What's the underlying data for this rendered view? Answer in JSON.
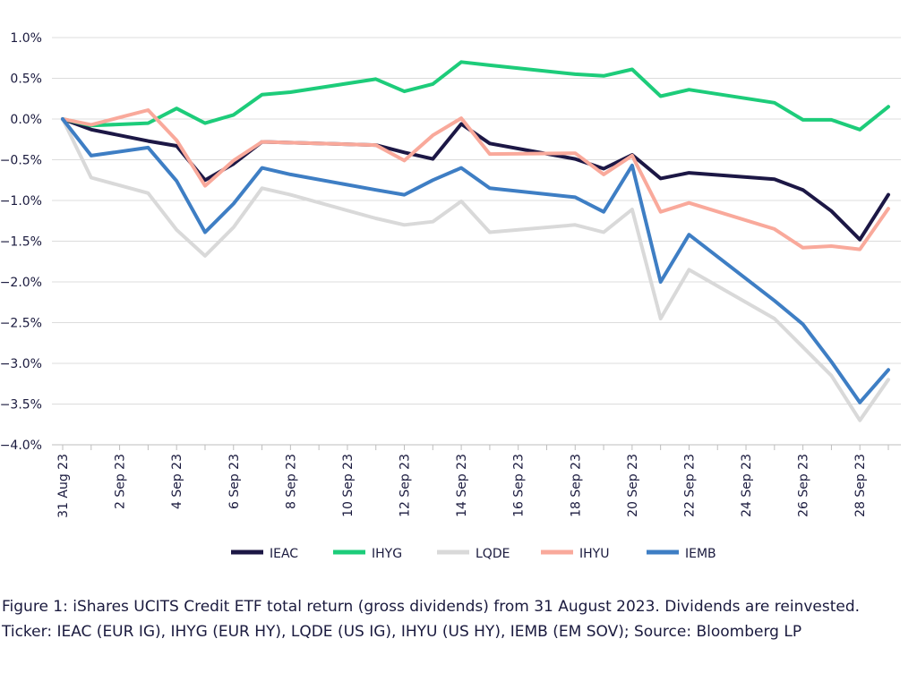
{
  "caption": {
    "line1": "Figure 1: iShares UCITS Credit ETF total return (gross dividends) from 31 August 2023. Dividends are reinvested.",
    "line2": "Ticker: IEAC (EUR IG), IHYG (EUR HY), LQDE (US IG), IHYU (US HY), IEMB (EM SOV); Source: Bloomberg LP"
  },
  "chart_data": {
    "type": "line",
    "title": "",
    "xlabel": "",
    "ylabel": "",
    "x_day_offsets": [
      0,
      1,
      3,
      4,
      5,
      6,
      7,
      8,
      11,
      12,
      13,
      14,
      15,
      18,
      19,
      20,
      21,
      22,
      25,
      26,
      27,
      28,
      29
    ],
    "x_tick_labels": [
      "31 Aug 23",
      "2 Sep 23",
      "4 Sep 23",
      "6 Sep 23",
      "8 Sep 23",
      "10 Sep 23",
      "12 Sep 23",
      "14 Sep 23",
      "16 Sep 23",
      "18 Sep 23",
      "20 Sep 23",
      "22 Sep 23",
      "24 Sep 23",
      "26 Sep 23",
      "28 Sep 23"
    ],
    "x_tick_day_offsets": [
      0,
      2,
      4,
      6,
      8,
      10,
      12,
      14,
      16,
      18,
      20,
      22,
      24,
      26,
      28
    ],
    "y_ticks": [
      1.0,
      0.5,
      0.0,
      -0.5,
      -1.0,
      -1.5,
      -2.0,
      -2.5,
      -3.0,
      -3.5,
      -4.0
    ],
    "y_tick_labels": [
      "1.0%",
      "0.5%",
      "0.0%",
      "−0.5%",
      "−1.0%",
      "−1.5%",
      "−2.0%",
      "−2.5%",
      "−3.0%",
      "−3.5%",
      "−4.0%"
    ],
    "ylim": [
      -4.0,
      1.0
    ],
    "xlim": [
      0,
      29
    ],
    "legend_position": "bottom",
    "series": [
      {
        "name": "IEAC",
        "color": "#1c1745",
        "values": [
          0.0,
          -0.13,
          -0.27,
          -0.33,
          -0.75,
          -0.55,
          -0.28,
          -0.29,
          -0.32,
          -0.41,
          -0.49,
          -0.06,
          -0.3,
          -0.49,
          -0.61,
          -0.44,
          -0.73,
          -0.66,
          -0.74,
          -0.87,
          -1.13,
          -1.48,
          -0.93
        ]
      },
      {
        "name": "IHYG",
        "color": "#1dcc7a",
        "values": [
          0.0,
          -0.08,
          -0.05,
          0.13,
          -0.05,
          0.05,
          0.3,
          0.33,
          0.49,
          0.34,
          0.43,
          0.7,
          0.66,
          0.55,
          0.53,
          0.61,
          0.28,
          0.36,
          0.2,
          -0.01,
          -0.01,
          -0.13,
          0.15
        ]
      },
      {
        "name": "LQDE",
        "color": "#d9d9d9",
        "values": [
          0.0,
          -0.72,
          -0.91,
          -1.36,
          -1.68,
          -1.33,
          -0.85,
          -0.93,
          -1.22,
          -1.3,
          -1.26,
          -1.01,
          -1.39,
          -1.3,
          -1.39,
          -1.11,
          -2.45,
          -1.85,
          -2.45,
          -2.8,
          -3.15,
          -3.7,
          -3.2
        ]
      },
      {
        "name": "IHYU",
        "color": "#f9a99b",
        "values": [
          0.0,
          -0.07,
          0.11,
          -0.26,
          -0.82,
          -0.51,
          -0.28,
          -0.29,
          -0.32,
          -0.51,
          -0.2,
          0.01,
          -0.43,
          -0.42,
          -0.68,
          -0.45,
          -1.14,
          -1.03,
          -1.35,
          -1.58,
          -1.56,
          -1.6,
          -1.1
        ]
      },
      {
        "name": "IEMB",
        "color": "#3e7ec4",
        "values": [
          0.0,
          -0.45,
          -0.35,
          -0.76,
          -1.39,
          -1.04,
          -0.6,
          -0.68,
          -0.87,
          -0.93,
          -0.75,
          -0.6,
          -0.85,
          -0.96,
          -1.14,
          -0.57,
          -2.0,
          -1.42,
          -2.23,
          -2.52,
          -2.98,
          -3.48,
          -3.08
        ]
      }
    ]
  }
}
